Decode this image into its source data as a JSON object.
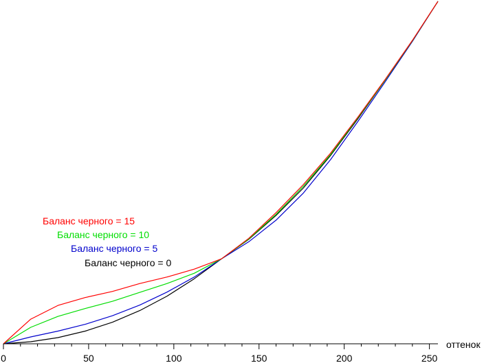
{
  "chart_data": {
    "type": "line",
    "title": "",
    "xlabel": "оттенок",
    "ylabel": "",
    "xlim": [
      0,
      255
    ],
    "ylim": [
      0,
      1
    ],
    "xticks": [
      0,
      50,
      100,
      150,
      200,
      250
    ],
    "grid": false,
    "legend_position": "left-middle",
    "series": [
      {
        "name": "Баланс черного = 15",
        "color": "#ff0000",
        "x": [
          0,
          16,
          32,
          48,
          64,
          80,
          96,
          112,
          128,
          144,
          160,
          176,
          192,
          208,
          224,
          240,
          255
        ],
        "y": [
          0.0,
          0.072,
          0.112,
          0.135,
          0.153,
          0.176,
          0.195,
          0.218,
          0.248,
          0.308,
          0.383,
          0.465,
          0.557,
          0.662,
          0.772,
          0.886,
          1.0
        ]
      },
      {
        "name": "Баланс черного = 10",
        "color": "#00dd00",
        "x": [
          0,
          16,
          32,
          48,
          64,
          80,
          96,
          112,
          128,
          144,
          160,
          176,
          192,
          208,
          224,
          240,
          255
        ],
        "y": [
          0.0,
          0.048,
          0.08,
          0.103,
          0.124,
          0.15,
          0.176,
          0.206,
          0.248,
          0.306,
          0.378,
          0.46,
          0.553,
          0.66,
          0.77,
          0.885,
          1.0
        ]
      },
      {
        "name": "Баланс черного = 5",
        "color": "#0000cc",
        "x": [
          0,
          16,
          32,
          48,
          64,
          80,
          96,
          112,
          128,
          144,
          160,
          176,
          192,
          208,
          224,
          240,
          255
        ],
        "y": [
          0.0,
          0.02,
          0.037,
          0.057,
          0.082,
          0.113,
          0.151,
          0.195,
          0.248,
          0.298,
          0.361,
          0.44,
          0.538,
          0.649,
          0.765,
          0.883,
          1.0
        ]
      },
      {
        "name": "Баланс черного = 0",
        "color": "#000000",
        "x": [
          0,
          16,
          32,
          48,
          64,
          80,
          96,
          112,
          128,
          144,
          160,
          176,
          192,
          208,
          224,
          240,
          255
        ],
        "y": [
          0.0,
          0.006,
          0.018,
          0.037,
          0.063,
          0.097,
          0.139,
          0.19,
          0.248,
          0.305,
          0.375,
          0.455,
          0.55,
          0.657,
          0.77,
          0.885,
          1.0
        ]
      }
    ]
  }
}
